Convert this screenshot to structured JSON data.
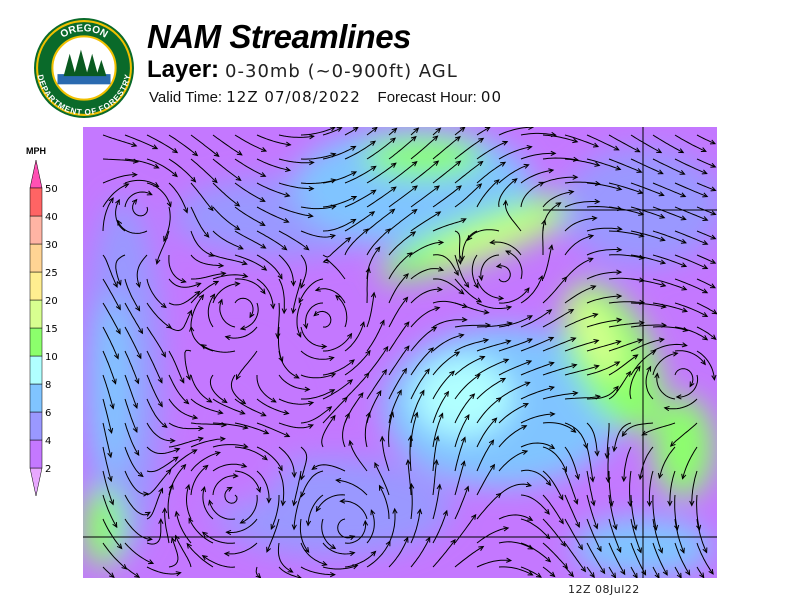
{
  "logo": {
    "top_text": "OREGON",
    "bottom_text": "DEPARTMENT OF FORESTRY"
  },
  "header": {
    "title": "NAM Streamlines",
    "layer_label": "Layer:",
    "layer_value": "0-30mb (~0-900ft) AGL",
    "valid_label": "Valid Time:",
    "valid_value": "12Z 07/08/2022",
    "forecast_label": "Forecast Hour:",
    "forecast_value": "00"
  },
  "legend": {
    "unit": "MPH",
    "labels": [
      "2",
      "4",
      "6",
      "8",
      "10",
      "15",
      "20",
      "25",
      "30",
      "40",
      "50"
    ],
    "colors": [
      "#c478ff",
      "#9a98ff",
      "#80c4ff",
      "#b0ffff",
      "#8cff6c",
      "#d8ff90",
      "#ffee90",
      "#ffd494",
      "#ffb4a4",
      "#ff6464"
    ],
    "over_color": "#ff50b4",
    "under_color": "#e8a8ff"
  },
  "map": {
    "timestamp": "12Z 08Jul22"
  }
}
